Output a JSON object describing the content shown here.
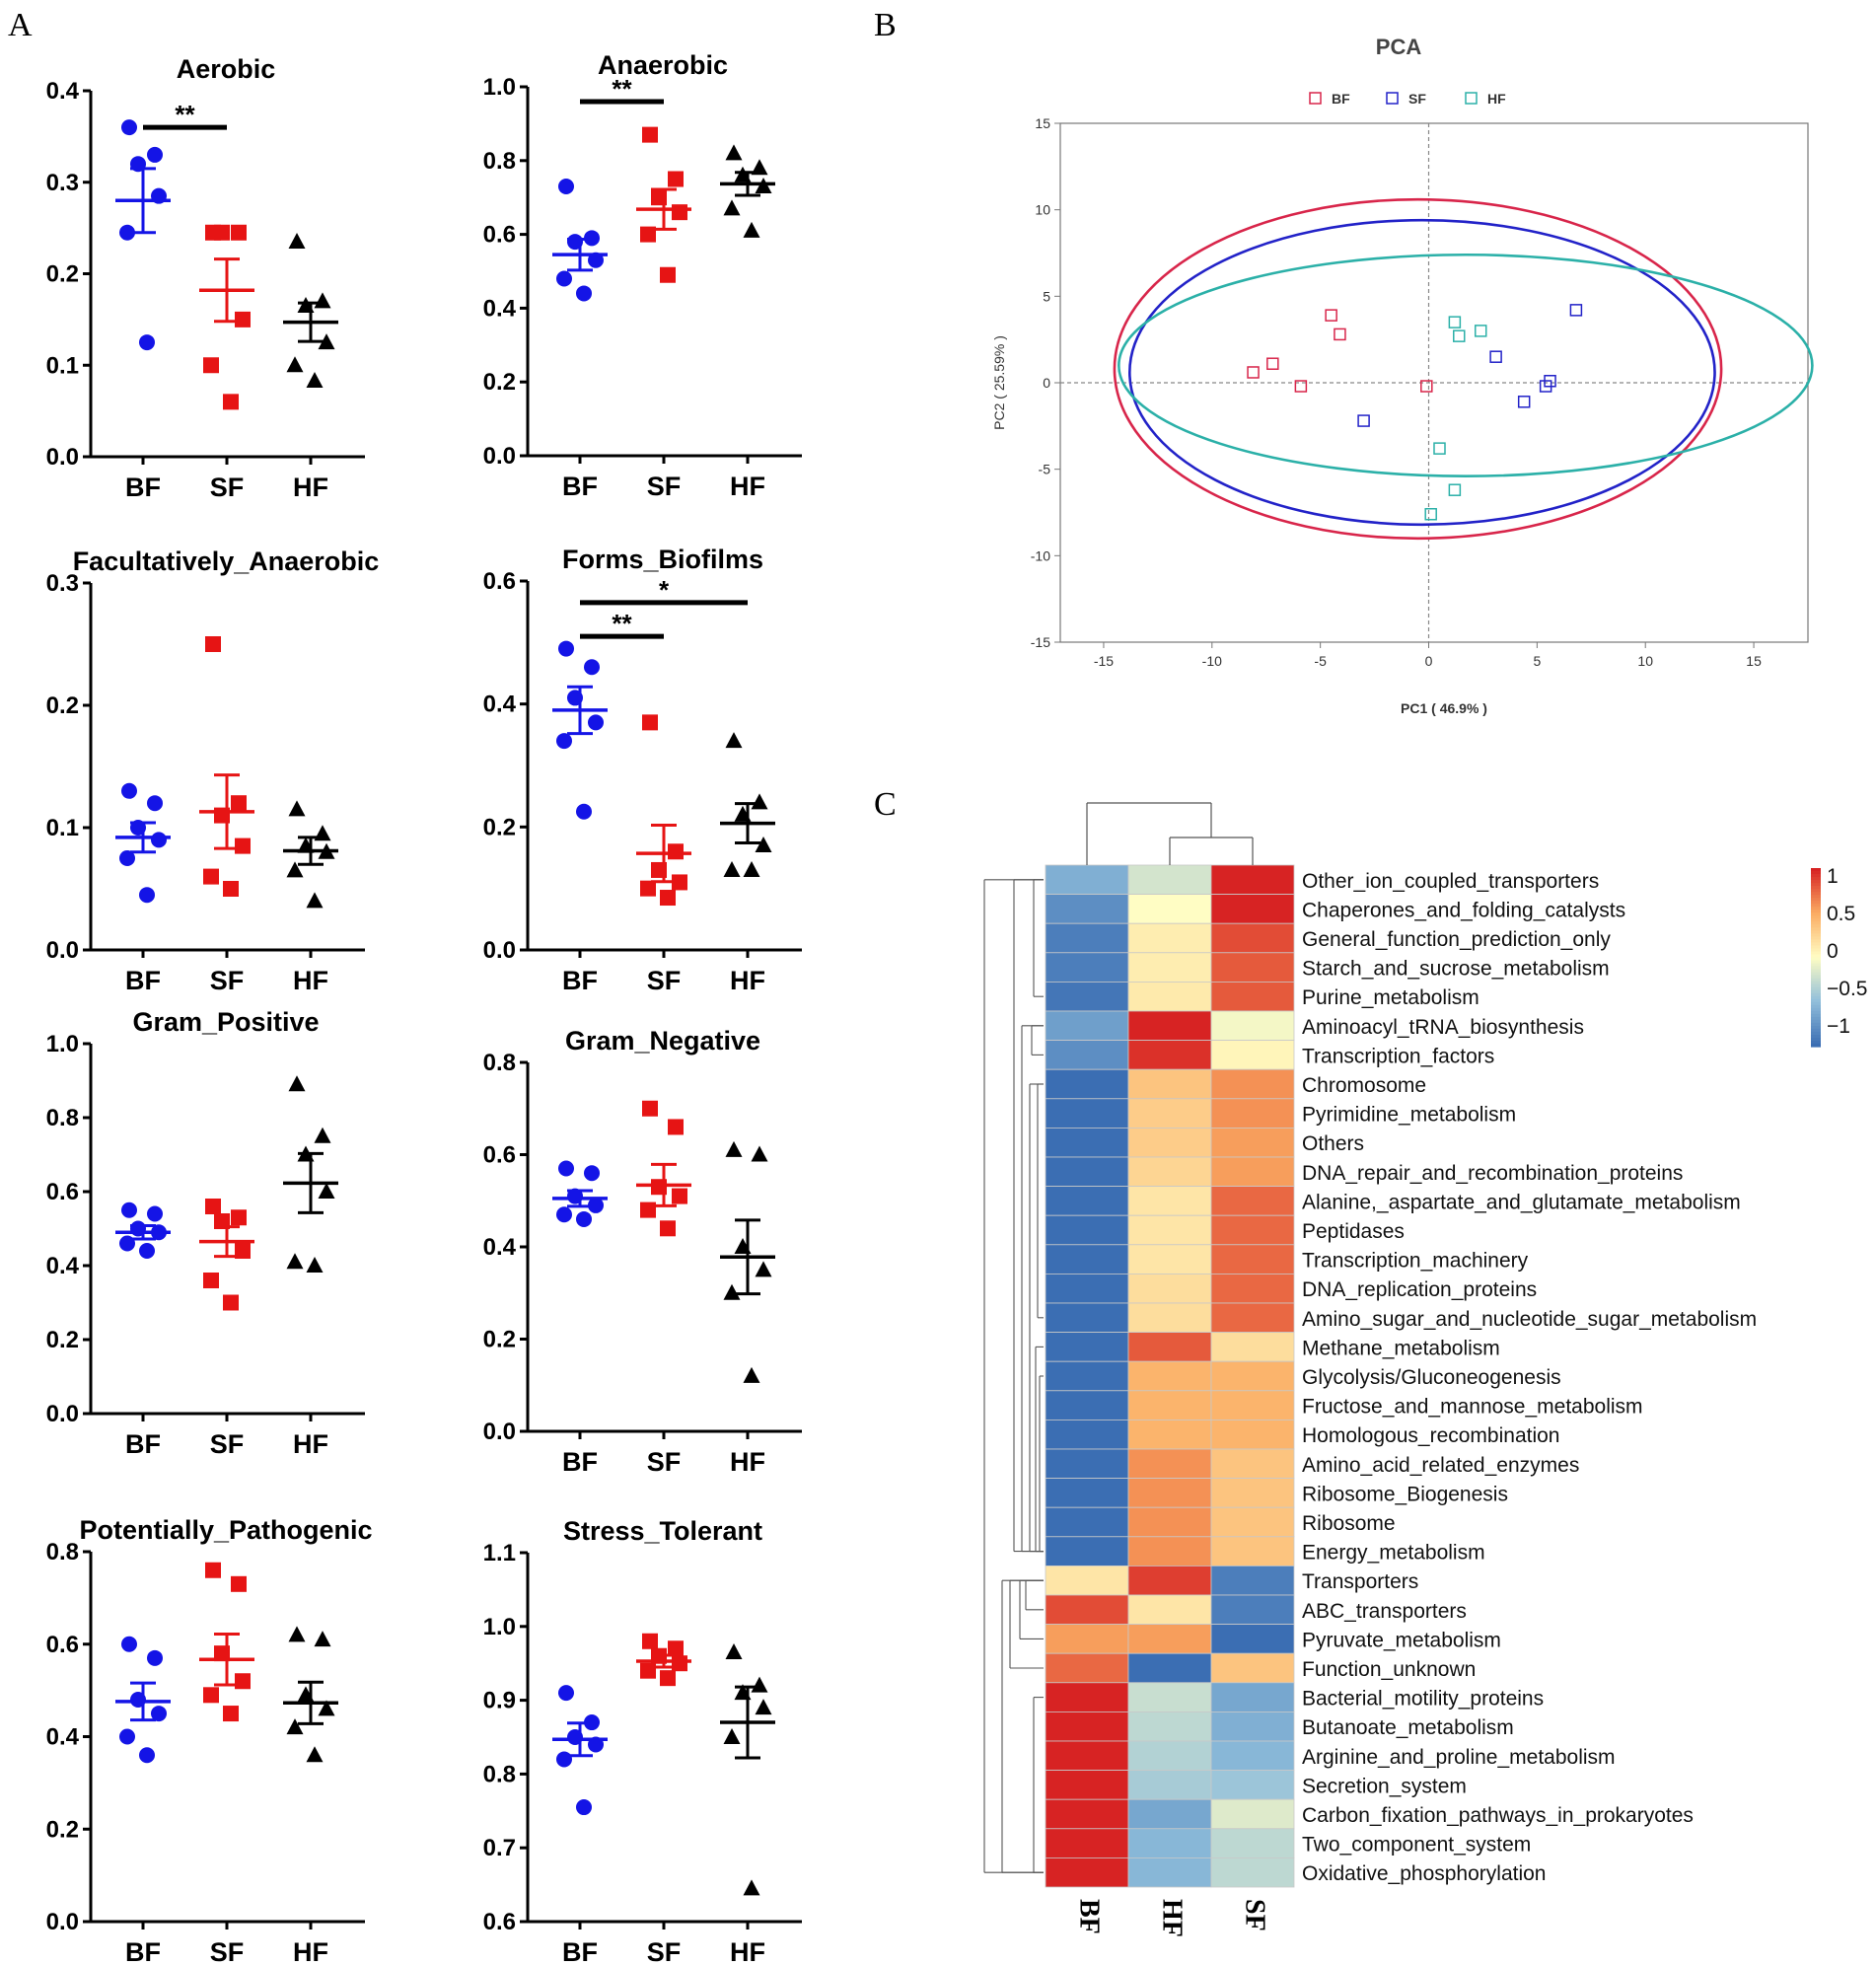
{
  "panel_labels": {
    "a": "A",
    "b": "B",
    "c": "C"
  },
  "colors": {
    "BF": "#1414e6",
    "SF": "#e61414",
    "HF": "#000000",
    "pca_BF": "#d8254a",
    "pca_SF": "#2222c8",
    "pca_HF": "#2bb0a8"
  },
  "chart_data": [
    {
      "type": "scatter",
      "id": "aerobic",
      "title": "Aerobic",
      "categories": [
        "BF",
        "SF",
        "HF"
      ],
      "ylim": [
        0,
        0.4
      ],
      "yticks": [
        "0.0",
        "0.1",
        "0.2",
        "0.3",
        "0.4"
      ],
      "points": [
        [
          0.36,
          0.33,
          0.32,
          0.285,
          0.245,
          0.125
        ],
        [
          0.245,
          0.245,
          0.245,
          0.15,
          0.1,
          0.06
        ],
        [
          0.235,
          0.17,
          0.165,
          0.125,
          0.1,
          0.083
        ]
      ],
      "means": [
        0.28,
        0.182,
        0.147
      ],
      "sems": [
        0.035,
        0.034,
        0.021
      ],
      "significance": [
        {
          "from": "BF",
          "to": "SF",
          "y": 0.36,
          "label": "**"
        }
      ]
    },
    {
      "type": "scatter",
      "id": "anaerobic",
      "title": "Anaerobic",
      "categories": [
        "BF",
        "SF",
        "HF"
      ],
      "ylim": [
        0,
        1.0
      ],
      "yticks": [
        "0.0",
        "0.2",
        "0.4",
        "0.6",
        "0.8",
        "1.0"
      ],
      "points": [
        [
          0.73,
          0.59,
          0.58,
          0.53,
          0.48,
          0.44
        ],
        [
          0.87,
          0.75,
          0.7,
          0.66,
          0.6,
          0.49
        ],
        [
          0.82,
          0.78,
          0.76,
          0.73,
          0.67,
          0.61
        ]
      ],
      "means": [
        0.545,
        0.668,
        0.737
      ],
      "sems": [
        0.042,
        0.054,
        0.031
      ],
      "significance": [
        {
          "from": "BF",
          "to": "SF",
          "y": 0.96,
          "label": "**"
        }
      ]
    },
    {
      "type": "scatter",
      "id": "facultatively-anaerobic",
      "title": "Facultatively_Anaerobic",
      "categories": [
        "BF",
        "SF",
        "HF"
      ],
      "ylim": [
        0,
        0.3
      ],
      "yticks": [
        "0.0",
        "0.1",
        "0.2",
        "0.3"
      ],
      "points": [
        [
          0.13,
          0.12,
          0.1,
          0.09,
          0.075,
          0.045
        ],
        [
          0.25,
          0.12,
          0.11,
          0.085,
          0.06,
          0.05
        ],
        [
          0.115,
          0.095,
          0.085,
          0.08,
          0.065,
          0.04
        ]
      ],
      "means": [
        0.092,
        0.113,
        0.081
      ],
      "sems": [
        0.012,
        0.03,
        0.011
      ],
      "significance": []
    },
    {
      "type": "scatter",
      "id": "forms-biofilms",
      "title": "Forms_Biofilms",
      "categories": [
        "BF",
        "SF",
        "HF"
      ],
      "ylim": [
        0,
        0.6
      ],
      "yticks": [
        "0.0",
        "0.2",
        "0.4",
        "0.6"
      ],
      "points": [
        [
          0.49,
          0.46,
          0.41,
          0.37,
          0.34,
          0.225
        ],
        [
          0.37,
          0.16,
          0.13,
          0.11,
          0.1,
          0.085
        ],
        [
          0.34,
          0.24,
          0.22,
          0.17,
          0.13,
          0.13
        ]
      ],
      "means": [
        0.39,
        0.157,
        0.206
      ],
      "sems": [
        0.038,
        0.046,
        0.032
      ],
      "significance": [
        {
          "from": "BF",
          "to": "HF",
          "y": 0.565,
          "label": "*"
        },
        {
          "from": "BF",
          "to": "SF",
          "y": 0.51,
          "label": "**"
        }
      ]
    },
    {
      "type": "scatter",
      "id": "gram-positive",
      "title": "Gram_Positive",
      "categories": [
        "BF",
        "SF",
        "HF"
      ],
      "ylim": [
        0,
        1.0
      ],
      "yticks": [
        "0.0",
        "0.2",
        "0.4",
        "0.6",
        "0.8",
        "1.0"
      ],
      "points": [
        [
          0.55,
          0.54,
          0.5,
          0.49,
          0.46,
          0.44
        ],
        [
          0.56,
          0.53,
          0.52,
          0.44,
          0.36,
          0.3
        ],
        [
          0.89,
          0.75,
          0.7,
          0.6,
          0.41,
          0.4
        ]
      ],
      "means": [
        0.49,
        0.465,
        0.623
      ],
      "sems": [
        0.018,
        0.04,
        0.08
      ],
      "significance": []
    },
    {
      "type": "scatter",
      "id": "gram-negative",
      "title": "Gram_Negative",
      "categories": [
        "BF",
        "SF",
        "HF"
      ],
      "ylim": [
        0,
        0.8
      ],
      "yticks": [
        "0.0",
        "0.2",
        "0.4",
        "0.6",
        "0.8"
      ],
      "points": [
        [
          0.57,
          0.56,
          0.51,
          0.49,
          0.47,
          0.46
        ],
        [
          0.7,
          0.66,
          0.53,
          0.51,
          0.48,
          0.44
        ],
        [
          0.61,
          0.6,
          0.4,
          0.35,
          0.3,
          0.12
        ]
      ],
      "means": [
        0.505,
        0.534,
        0.378
      ],
      "sems": [
        0.017,
        0.045,
        0.08
      ],
      "significance": []
    },
    {
      "type": "scatter",
      "id": "potentially-pathogenic",
      "title": "Potentially_Pathogenic",
      "categories": [
        "BF",
        "SF",
        "HF"
      ],
      "ylim": [
        0,
        0.8
      ],
      "yticks": [
        "0.0",
        "0.2",
        "0.4",
        "0.6",
        "0.8"
      ],
      "points": [
        [
          0.6,
          0.57,
          0.48,
          0.45,
          0.4,
          0.36
        ],
        [
          0.76,
          0.73,
          0.58,
          0.52,
          0.49,
          0.45
        ],
        [
          0.62,
          0.61,
          0.49,
          0.46,
          0.42,
          0.36
        ]
      ],
      "means": [
        0.476,
        0.567,
        0.473
      ],
      "sems": [
        0.04,
        0.055,
        0.045
      ],
      "significance": []
    },
    {
      "type": "scatter",
      "id": "stress-tolerant",
      "title": "Stress_Tolerant",
      "categories": [
        "BF",
        "SF",
        "HF"
      ],
      "ylim": [
        0.6,
        1.1
      ],
      "yticks": [
        "0.6",
        "0.7",
        "0.8",
        "0.9",
        "1.0",
        "1.1"
      ],
      "points": [
        [
          0.91,
          0.87,
          0.85,
          0.84,
          0.82,
          0.755
        ],
        [
          0.98,
          0.97,
          0.96,
          0.95,
          0.94,
          0.93
        ],
        [
          0.965,
          0.92,
          0.91,
          0.89,
          0.85,
          0.645
        ]
      ],
      "means": [
        0.847,
        0.953,
        0.87
      ],
      "sems": [
        0.022,
        0.008,
        0.048
      ],
      "significance": []
    },
    {
      "type": "scatter",
      "id": "pca",
      "title": "PCA",
      "xlabel": "PC1 ( 46.9% )",
      "ylabel": "PC2 ( 25.59% )",
      "xlim": [
        -17,
        17.5
      ],
      "ylim": [
        -15,
        15
      ],
      "xticks": [
        -15,
        -10,
        -5,
        0,
        5,
        10,
        15
      ],
      "yticks": [
        -15,
        -10,
        -5,
        0,
        5,
        10,
        15
      ],
      "legend": [
        "BF",
        "SF",
        "HF"
      ],
      "series": [
        {
          "name": "BF",
          "x": [
            -8.1,
            -7.2,
            -5.9,
            -4.5,
            -4.1,
            -0.1
          ],
          "y": [
            0.6,
            1.1,
            -0.2,
            3.9,
            2.8,
            -0.2
          ]
        },
        {
          "name": "SF",
          "x": [
            -3.0,
            3.1,
            4.4,
            5.4,
            5.6,
            6.8
          ],
          "y": [
            -2.2,
            1.5,
            -1.1,
            -0.2,
            0.1,
            4.2
          ]
        },
        {
          "name": "HF",
          "x": [
            1.2,
            1.4,
            2.4,
            0.5,
            1.2,
            0.1
          ],
          "y": [
            3.5,
            2.7,
            3.0,
            -3.8,
            -6.2,
            -7.6
          ]
        }
      ],
      "ellipses": [
        {
          "name": "BF",
          "cx": -0.5,
          "cy": 0.8,
          "rx": 14.0,
          "ry": 9.8
        },
        {
          "name": "SF",
          "cx": -0.3,
          "cy": 0.6,
          "rx": 13.5,
          "ry": 8.8
        },
        {
          "name": "HF",
          "cx": 1.7,
          "cy": 1.0,
          "rx": 16.0,
          "ry": 6.4
        }
      ]
    },
    {
      "type": "heatmap",
      "id": "heatmap",
      "columns": [
        "BF",
        "HF",
        "SF"
      ],
      "scale_ticks": [
        "1",
        "0.5",
        "0",
        "−0.5",
        "−1"
      ],
      "rows": [
        {
          "label": "Other_ion_coupled_transporters",
          "values": [
            -0.6,
            -0.2,
            1.1
          ]
        },
        {
          "label": "Chaperones_and_folding_catalysts",
          "values": [
            -0.8,
            0.0,
            1.0
          ]
        },
        {
          "label": "General_function_prediction_only",
          "values": [
            -0.9,
            0.1,
            0.85
          ]
        },
        {
          "label": "Starch_and_sucrose_metabolism",
          "values": [
            -0.9,
            0.1,
            0.8
          ]
        },
        {
          "label": "Purine_metabolism",
          "values": [
            -0.95,
            0.12,
            0.8
          ]
        },
        {
          "label": "Aminoacyl_tRNA_biosynthesis",
          "values": [
            -0.7,
            1.05,
            -0.05
          ]
        },
        {
          "label": "Transcription_factors",
          "values": [
            -0.8,
            0.95,
            0.05
          ]
        },
        {
          "label": "Chromosome",
          "values": [
            -1.0,
            0.35,
            0.6
          ]
        },
        {
          "label": "Pyrimidine_metabolism",
          "values": [
            -1.0,
            0.3,
            0.6
          ]
        },
        {
          "label": "Others",
          "values": [
            -1.0,
            0.3,
            0.55
          ]
        },
        {
          "label": "DNA_repair_and_recombination_proteins",
          "values": [
            -1.0,
            0.25,
            0.55
          ]
        },
        {
          "label": "Alanine,_aspartate_and_glutamate_metabolism",
          "values": [
            -1.0,
            0.15,
            0.75
          ]
        },
        {
          "label": "Peptidases",
          "values": [
            -1.0,
            0.15,
            0.75
          ]
        },
        {
          "label": "Transcription_machinery",
          "values": [
            -1.0,
            0.15,
            0.75
          ]
        },
        {
          "label": "DNA_replication_proteins",
          "values": [
            -1.0,
            0.2,
            0.75
          ]
        },
        {
          "label": "Amino_sugar_and_nucleotide_sugar_metabolism",
          "values": [
            -1.0,
            0.2,
            0.75
          ]
        },
        {
          "label": "Methane_metabolism",
          "values": [
            -1.0,
            0.8,
            0.2
          ]
        },
        {
          "label": "Glycolysis/Gluconeogenesis",
          "values": [
            -1.0,
            0.45,
            0.45
          ]
        },
        {
          "label": "Fructose_and_mannose_metabolism",
          "values": [
            -1.0,
            0.45,
            0.45
          ]
        },
        {
          "label": "Homologous_recombination",
          "values": [
            -1.0,
            0.45,
            0.45
          ]
        },
        {
          "label": "Amino_acid_related_enzymes",
          "values": [
            -1.0,
            0.6,
            0.35
          ]
        },
        {
          "label": "Ribosome_Biogenesis",
          "values": [
            -1.0,
            0.6,
            0.35
          ]
        },
        {
          "label": "Ribosome",
          "values": [
            -1.0,
            0.6,
            0.35
          ]
        },
        {
          "label": "Energy_metabolism",
          "values": [
            -1.0,
            0.6,
            0.35
          ]
        },
        {
          "label": "Transporters",
          "values": [
            0.15,
            0.9,
            -0.9
          ]
        },
        {
          "label": "ABC_transporters",
          "values": [
            0.85,
            0.15,
            -0.9
          ]
        },
        {
          "label": "Pyruvate_metabolism",
          "values": [
            0.55,
            0.55,
            -1.0
          ]
        },
        {
          "label": "Function_unknown",
          "values": [
            0.75,
            -1.0,
            0.35
          ]
        },
        {
          "label": "Bacterial_motility_proteins",
          "values": [
            1.05,
            -0.25,
            -0.65
          ]
        },
        {
          "label": "Butanoate_metabolism",
          "values": [
            1.05,
            -0.3,
            -0.6
          ]
        },
        {
          "label": "Arginine_and_proline_metabolism",
          "values": [
            1.05,
            -0.35,
            -0.55
          ]
        },
        {
          "label": "Secretion_system",
          "values": [
            1.05,
            -0.4,
            -0.45
          ]
        },
        {
          "label": "Carbon_fixation_pathways_in_prokaryotes",
          "values": [
            1.05,
            -0.65,
            -0.15
          ]
        },
        {
          "label": "Two_component_system",
          "values": [
            1.05,
            -0.55,
            -0.3
          ]
        },
        {
          "label": "Oxidative_phosphorylation",
          "values": [
            1.05,
            -0.55,
            -0.3
          ]
        }
      ]
    }
  ]
}
